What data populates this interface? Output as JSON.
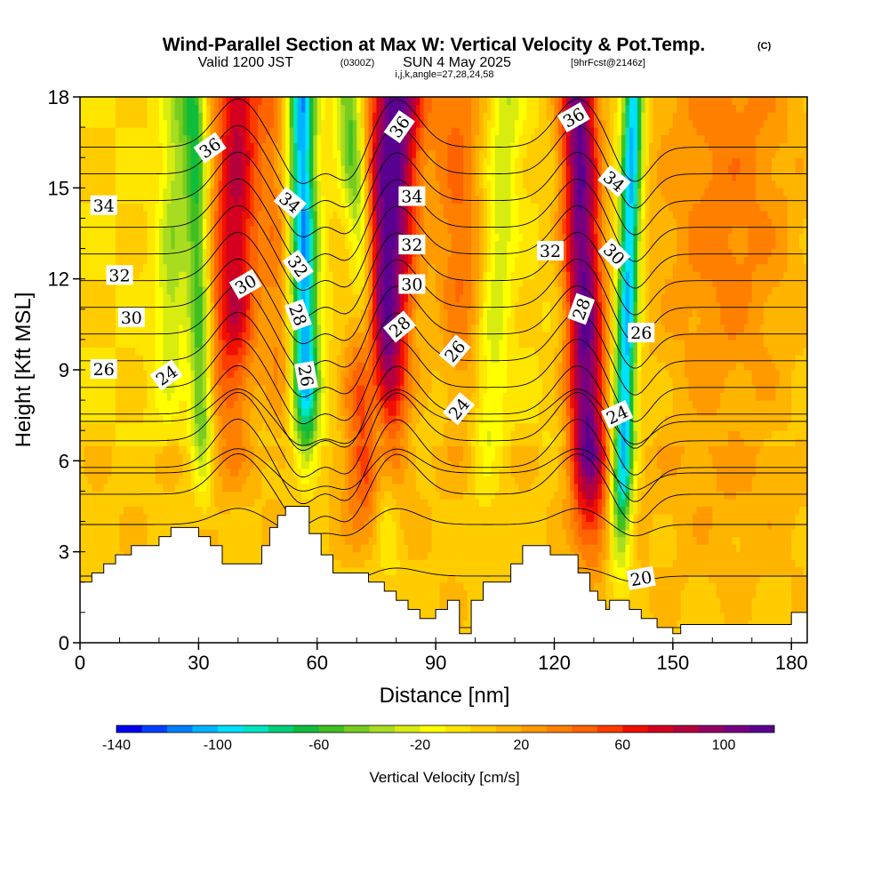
{
  "header": {
    "title": "Wind-Parallel Section at Max W: Vertical Velocity & Pot.Temp.",
    "copyright": "(C)",
    "valid_prefix": "Valid 1200 JST",
    "valid_utc": "(0300Z)",
    "valid_date": "SUN 4 May 2025",
    "forecast": "[9hrFcst@2146z]",
    "indices": "i,j,k,angle=27,28,24,58"
  },
  "chart_data": {
    "type": "heatmap",
    "xlabel": "Distance [nm]",
    "ylabel": "Height [Kft MSL]",
    "xlim": [
      0,
      184
    ],
    "ylim": [
      0,
      18
    ],
    "x_ticks": [
      "0",
      "30",
      "60",
      "90",
      "120",
      "150",
      "180"
    ],
    "y_ticks": [
      "0",
      "3",
      "6",
      "9",
      "12",
      "15",
      "18"
    ],
    "terrain": [
      [
        0,
        2.0
      ],
      [
        3,
        2.0
      ],
      [
        3,
        2.3
      ],
      [
        6,
        2.3
      ],
      [
        6,
        2.6
      ],
      [
        9,
        2.6
      ],
      [
        9,
        2.9
      ],
      [
        13,
        2.9
      ],
      [
        13,
        3.2
      ],
      [
        20,
        3.2
      ],
      [
        20,
        3.5
      ],
      [
        23,
        3.5
      ],
      [
        23,
        3.8
      ],
      [
        30,
        3.8
      ],
      [
        30,
        3.5
      ],
      [
        33,
        3.5
      ],
      [
        33,
        3.2
      ],
      [
        36,
        3.2
      ],
      [
        36,
        2.6
      ],
      [
        46,
        2.6
      ],
      [
        46,
        3.2
      ],
      [
        48,
        3.2
      ],
      [
        48,
        3.8
      ],
      [
        50,
        3.8
      ],
      [
        50,
        4.2
      ],
      [
        52,
        4.2
      ],
      [
        52,
        4.5
      ],
      [
        58,
        4.5
      ],
      [
        58,
        3.6
      ],
      [
        61,
        3.6
      ],
      [
        61,
        2.9
      ],
      [
        64,
        2.9
      ],
      [
        64,
        2.3
      ],
      [
        73,
        2.3
      ],
      [
        73,
        2.0
      ],
      [
        77,
        2.0
      ],
      [
        77,
        1.7
      ],
      [
        80,
        1.7
      ],
      [
        80,
        1.4
      ],
      [
        83,
        1.4
      ],
      [
        83,
        1.1
      ],
      [
        86,
        1.1
      ],
      [
        86,
        0.8
      ],
      [
        90,
        0.8
      ],
      [
        90,
        1.1
      ],
      [
        93,
        1.1
      ],
      [
        93,
        1.4
      ],
      [
        96,
        1.4
      ],
      [
        96,
        0.3
      ],
      [
        99,
        0.3
      ],
      [
        99,
        1.4
      ],
      [
        102,
        1.4
      ],
      [
        102,
        2.0
      ],
      [
        109,
        2.0
      ],
      [
        109,
        2.6
      ],
      [
        112,
        2.6
      ],
      [
        112,
        3.2
      ],
      [
        119,
        3.2
      ],
      [
        119,
        2.9
      ],
      [
        126,
        2.9
      ],
      [
        126,
        2.3
      ],
      [
        129,
        2.3
      ],
      [
        129,
        1.7
      ],
      [
        131,
        1.7
      ],
      [
        131,
        1.4
      ],
      [
        133,
        1.4
      ],
      [
        133,
        1.1
      ],
      [
        134,
        1.1
      ],
      [
        134,
        1.4
      ],
      [
        139,
        1.4
      ],
      [
        139,
        1.1
      ],
      [
        142,
        1.1
      ],
      [
        142,
        0.8
      ],
      [
        146,
        0.8
      ],
      [
        146,
        0.5
      ],
      [
        150,
        0.5
      ],
      [
        150,
        0.3
      ],
      [
        152,
        0.3
      ],
      [
        152,
        0.6
      ],
      [
        180,
        0.6
      ],
      [
        180,
        1.0
      ],
      [
        184,
        1.0
      ]
    ],
    "updraft_columns": [
      {
        "x_bottom": 37,
        "x_top": 40,
        "height_from": 4.0,
        "peak_w": 80,
        "width": 9,
        "spread": 7
      },
      {
        "x_bottom": 72,
        "x_top": 80,
        "height_from": 2.5,
        "peak_w": 120,
        "width": 10,
        "spread": 6
      },
      {
        "x_bottom": 130,
        "x_top": 126,
        "height_from": 1.5,
        "peak_w": 110,
        "width": 7,
        "spread": 5
      },
      {
        "x_bottom": 99,
        "x_top": 95,
        "height_from": 4.0,
        "peak_w": 40,
        "width": 10,
        "spread": 8
      },
      {
        "x_bottom": 52,
        "x_top": 49,
        "height_from": 4.5,
        "peak_w": 30,
        "width": 6,
        "spread": 5
      },
      {
        "x_bottom": 163,
        "x_top": 164,
        "height_from": 0.8,
        "peak_w": 35,
        "width": 30,
        "spread": 12
      }
    ],
    "downdraft_columns": [
      {
        "x_bottom": 32,
        "x_top": 29,
        "height_from": 3.5,
        "peak_w": -60,
        "width": 4,
        "spread": 4
      },
      {
        "x_bottom": 58,
        "x_top": 56,
        "height_from": 4.5,
        "peak_w": -110,
        "width": 5,
        "spread": 4
      },
      {
        "x_bottom": 80,
        "x_top": 68,
        "height_from": 1.5,
        "peak_w": -60,
        "width": 5,
        "spread": 5
      },
      {
        "x_bottom": 136,
        "x_top": 140,
        "height_from": 1.3,
        "peak_w": -110,
        "width": 4,
        "spread": 4
      },
      {
        "x_bottom": 100,
        "x_top": 108,
        "height_from": 2.0,
        "peak_w": -30,
        "width": 6,
        "spread": 6
      },
      {
        "x_bottom": 20,
        "x_top": 25,
        "height_from": 6.0,
        "peak_w": -35,
        "width": 6,
        "spread": 5
      }
    ],
    "theta_levels": [
      20,
      21,
      22,
      23,
      24,
      25,
      26,
      27,
      28,
      29,
      30,
      31,
      32,
      33,
      34,
      35,
      36,
      37,
      38
    ],
    "contour_labels": [
      {
        "text": "34",
        "x": 6,
        "y": 14.4,
        "angle": 0
      },
      {
        "text": "32",
        "x": 10,
        "y": 12.1,
        "angle": 0
      },
      {
        "text": "30",
        "x": 13,
        "y": 10.7,
        "angle": 0
      },
      {
        "text": "26",
        "x": 6,
        "y": 9.0,
        "angle": 0
      },
      {
        "text": "24",
        "x": 22,
        "y": 8.8,
        "angle": -35
      },
      {
        "text": "36",
        "x": 33,
        "y": 16.3,
        "angle": -35
      },
      {
        "text": "30",
        "x": 42,
        "y": 11.8,
        "angle": -30
      },
      {
        "text": "34",
        "x": 53,
        "y": 14.5,
        "angle": 40
      },
      {
        "text": "32",
        "x": 55,
        "y": 12.4,
        "angle": 55
      },
      {
        "text": "28",
        "x": 55,
        "y": 10.8,
        "angle": 70
      },
      {
        "text": "26",
        "x": 57,
        "y": 8.8,
        "angle": 80
      },
      {
        "text": "36",
        "x": 81,
        "y": 17.0,
        "angle": -55
      },
      {
        "text": "34",
        "x": 84,
        "y": 14.7,
        "angle": 0
      },
      {
        "text": "32",
        "x": 84,
        "y": 13.1,
        "angle": 0
      },
      {
        "text": "30",
        "x": 84,
        "y": 11.8,
        "angle": 0
      },
      {
        "text": "28",
        "x": 81,
        "y": 10.4,
        "angle": -40
      },
      {
        "text": "26",
        "x": 95,
        "y": 9.6,
        "angle": -50
      },
      {
        "text": "24",
        "x": 96,
        "y": 7.7,
        "angle": -50
      },
      {
        "text": "36",
        "x": 125,
        "y": 17.3,
        "angle": -30
      },
      {
        "text": "32",
        "x": 119,
        "y": 12.9,
        "angle": 0
      },
      {
        "text": "34",
        "x": 135,
        "y": 15.2,
        "angle": 40
      },
      {
        "text": "30",
        "x": 135,
        "y": 12.8,
        "angle": 45
      },
      {
        "text": "28",
        "x": 127,
        "y": 11.0,
        "angle": -70
      },
      {
        "text": "26",
        "x": 142,
        "y": 10.2,
        "angle": 0
      },
      {
        "text": "24",
        "x": 136,
        "y": 7.5,
        "angle": -25
      },
      {
        "text": "20",
        "x": 142,
        "y": 2.1,
        "angle": -10
      }
    ],
    "colorbar": {
      "label": "Vertical Velocity [cm/s]",
      "min": -140,
      "max": 120,
      "step": 10,
      "tick_labels": [
        "-140",
        "-100",
        "-60",
        "-20",
        "20",
        "60",
        "100"
      ],
      "tick_values": [
        -140,
        -100,
        -60,
        -20,
        20,
        60,
        100
      ],
      "colors": [
        "#0000f0",
        "#0040ff",
        "#0080ff",
        "#00b4ff",
        "#00e0ff",
        "#00e6c0",
        "#00d07c",
        "#10bc3c",
        "#40c020",
        "#78cc20",
        "#a8dc20",
        "#d8ec10",
        "#ffff00",
        "#ffe600",
        "#ffcc00",
        "#ffb400",
        "#ff9a00",
        "#ff8000",
        "#ff6400",
        "#ff3c00",
        "#f01000",
        "#d40020",
        "#b4003c",
        "#960064",
        "#780080",
        "#5a0090"
      ]
    }
  }
}
